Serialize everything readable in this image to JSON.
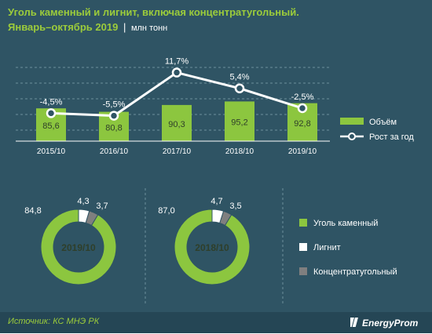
{
  "title": {
    "line1": "Уголь каменный и лигнит, включая концентратугольный.",
    "line2": "Январь–октябрь 2019",
    "separator": "|",
    "units": "млн тонн"
  },
  "colors": {
    "background": "#2f5464",
    "green": "#8cc63f",
    "white": "#ffffff",
    "gray": "#7f7f7f",
    "title": "#9ccc3b"
  },
  "chart_data": [
    {
      "type": "bar",
      "categories": [
        "2015/10",
        "2016/10",
        "2017/10",
        "2018/10",
        "2019/10"
      ],
      "series": [
        {
          "name": "Объём",
          "values": [
            85.6,
            80.8,
            90.3,
            95.2,
            92.8
          ],
          "labels": [
            "85,6",
            "80,8",
            "90,3",
            "95,2",
            "92,8"
          ]
        }
      ],
      "ylim": [
        40,
        100
      ],
      "grid": true,
      "legend_position": "right"
    },
    {
      "type": "line",
      "categories": [
        "2015/10",
        "2016/10",
        "2017/10",
        "2018/10",
        "2019/10"
      ],
      "series": [
        {
          "name": "Рост за год",
          "values": [
            -4.5,
            -5.5,
            11.7,
            5.4,
            -2.5
          ],
          "labels": [
            "-4,5%",
            "-5,5%",
            "11,7%",
            "5,4%",
            "-2,5%"
          ]
        }
      ],
      "ylim": [
        -12,
        14
      ],
      "legend_position": "right"
    },
    {
      "type": "pie",
      "center_label": "2019/10",
      "categories": [
        "Уголь каменный",
        "Лигнит",
        "Концентратугольный"
      ],
      "values": [
        84.8,
        4.3,
        3.7
      ],
      "labels": [
        "84,8",
        "4,3",
        "3,7"
      ]
    },
    {
      "type": "pie",
      "center_label": "2018/10",
      "categories": [
        "Уголь каменный",
        "Лигнит",
        "Концентратугольный"
      ],
      "values": [
        87.0,
        4.7,
        3.5
      ],
      "labels": [
        "87,0",
        "4,7",
        "3,5"
      ]
    }
  ],
  "pie_legend": [
    "Уголь каменный",
    "Лигнит",
    "Концентратугольный"
  ],
  "footer": {
    "source": "Источник: КС МНЭ РК",
    "logo": "EnergyProm"
  }
}
